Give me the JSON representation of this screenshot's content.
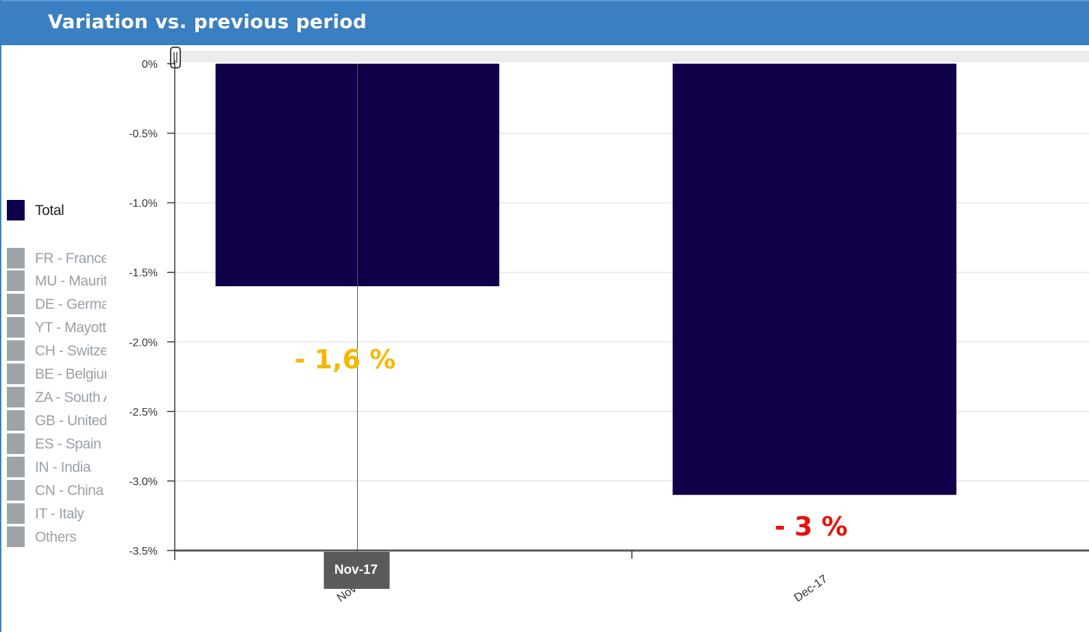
{
  "panel": {
    "title": "Variation vs. previous period"
  },
  "legend": {
    "items": [
      {
        "label": "Total",
        "color": "#10004a",
        "active": true
      },
      {
        "label": "FR - France",
        "color": "#9ea3a7",
        "active": false
      },
      {
        "label": "MU - Mauritius",
        "color": "#9ea3a7",
        "active": false
      },
      {
        "label": "DE - Germany",
        "color": "#9ea3a7",
        "active": false
      },
      {
        "label": "YT - Mayotte",
        "color": "#9ea3a7",
        "active": false
      },
      {
        "label": "CH - Switzerland",
        "color": "#9ea3a7",
        "active": false
      },
      {
        "label": "BE - Belgium",
        "color": "#9ea3a7",
        "active": false
      },
      {
        "label": "ZA - South Africa",
        "color": "#9ea3a7",
        "active": false
      },
      {
        "label": "GB - United Kingdom",
        "color": "#9ea3a7",
        "active": false
      },
      {
        "label": "ES - Spain",
        "color": "#9ea3a7",
        "active": false
      },
      {
        "label": "IN - India",
        "color": "#9ea3a7",
        "active": false
      },
      {
        "label": "CN - China",
        "color": "#9ea3a7",
        "active": false
      },
      {
        "label": "IT - Italy",
        "color": "#9ea3a7",
        "active": false
      },
      {
        "label": "Others",
        "color": "#9ea3a7",
        "active": false
      }
    ]
  },
  "tooltip": {
    "label": "Nov-17"
  },
  "chart_data": {
    "type": "bar",
    "categories": [
      "Nov-17",
      "Dec-17"
    ],
    "series": [
      {
        "name": "Total",
        "values": [
          -1.6,
          -3.1
        ],
        "color": "#10004a"
      }
    ],
    "ylim": [
      -3.5,
      0
    ],
    "yticks": [
      0,
      -0.5,
      -1.0,
      -1.5,
      -2.0,
      -2.5,
      -3.0,
      -3.5
    ],
    "ytick_labels": [
      "0%",
      "-0.5%",
      "-1.0%",
      "-1.5%",
      "-2.0%",
      "-2.5%",
      "-3.0%",
      "-3.5%"
    ],
    "grid": true,
    "annotations": [
      {
        "text": "- 1,6 %",
        "category": "Nov-17",
        "color": "#f5b800"
      },
      {
        "text": "- 3 %",
        "category": "Dec-17",
        "color": "#e8120c"
      }
    ]
  }
}
